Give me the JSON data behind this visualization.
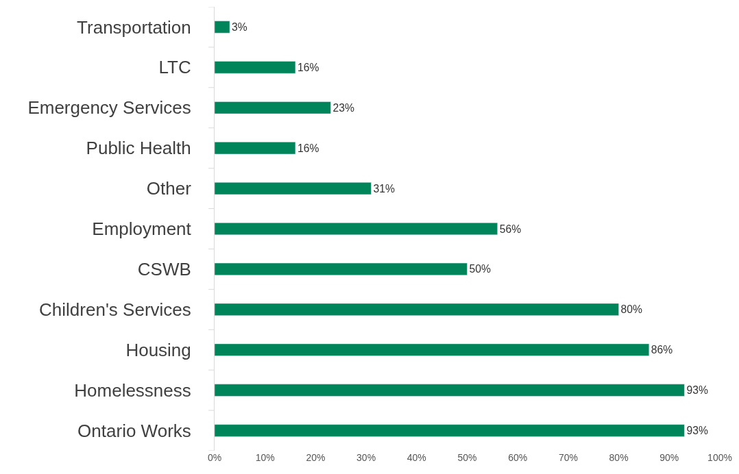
{
  "chart_data": {
    "type": "bar",
    "orientation": "horizontal",
    "categories": [
      "Transportation",
      "LTC",
      "Emergency Services",
      "Public Health",
      "Other",
      "Employment",
      "CSWB",
      "Children's Services",
      "Housing",
      "Homelessness",
      "Ontario Works"
    ],
    "values": [
      3,
      16,
      23,
      16,
      31,
      56,
      50,
      80,
      86,
      93,
      93
    ],
    "value_labels": [
      "3%",
      "16%",
      "23%",
      "16%",
      "31%",
      "56%",
      "50%",
      "80%",
      "86%",
      "93%",
      "93%"
    ],
    "color": "#00845a",
    "xlim": [
      0,
      100
    ],
    "xticks": [
      {
        "value": 0,
        "label": "0%"
      },
      {
        "value": 10,
        "label": "10%"
      },
      {
        "value": 20,
        "label": "20%"
      },
      {
        "value": 30,
        "label": "30%"
      },
      {
        "value": 40,
        "label": "40%"
      },
      {
        "value": 50,
        "label": "50%"
      },
      {
        "value": 60,
        "label": "60%"
      },
      {
        "value": 70,
        "label": "70%"
      },
      {
        "value": 80,
        "label": "80%"
      },
      {
        "value": 90,
        "label": "90%"
      },
      {
        "value": 100,
        "label": "100%"
      }
    ]
  }
}
